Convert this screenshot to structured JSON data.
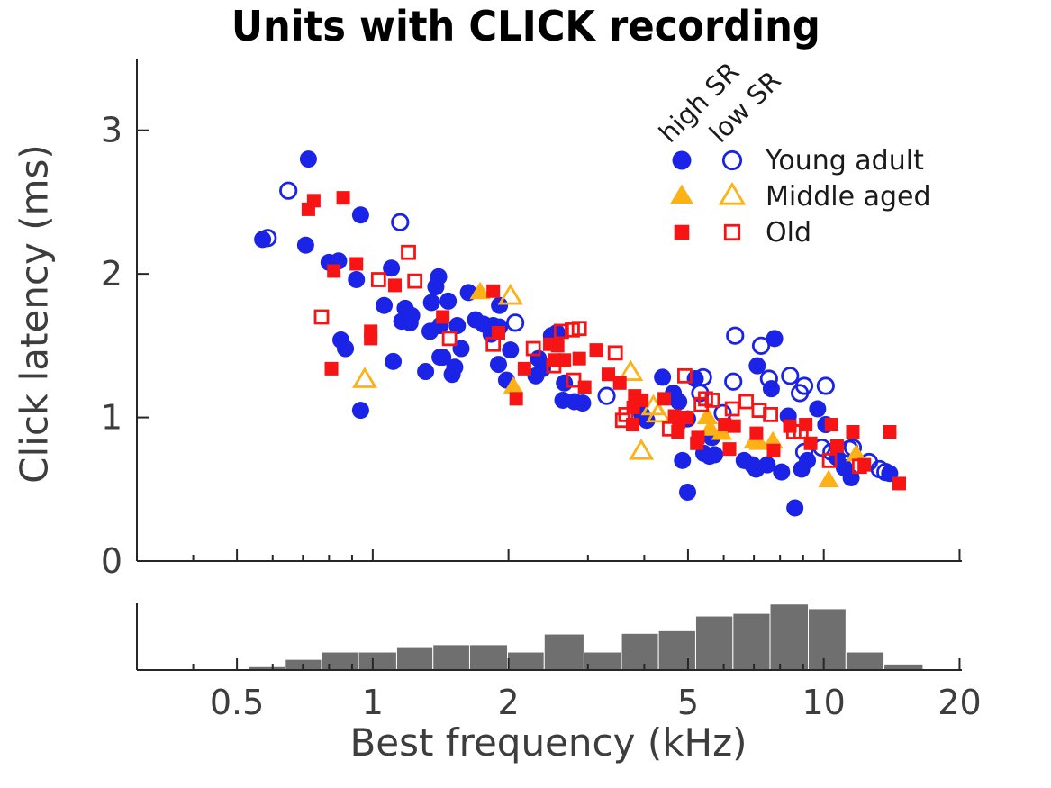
{
  "title": "Units with CLICK recording",
  "axes": {
    "x": {
      "label": "Best frequency (kHz)",
      "scale": "log",
      "min": 0.3,
      "max": 20.05,
      "major_ticks": [
        0.5,
        1,
        2,
        5,
        10,
        20
      ],
      "major_tick_labels": [
        "0.5",
        "1",
        "2",
        "5",
        "10",
        "20"
      ],
      "minor_ticks": [
        0.4,
        0.6,
        0.7,
        0.8,
        0.9,
        3,
        4,
        6,
        7,
        8,
        9
      ]
    },
    "y": {
      "label": "Click latency (ms)",
      "min": 0,
      "max": 3.5,
      "major_ticks": [
        0,
        1,
        2,
        3
      ],
      "major_tick_labels": [
        "0",
        "1",
        "2",
        "3"
      ]
    }
  },
  "legend": {
    "column_headers": [
      "high SR",
      "low SR"
    ],
    "entries": [
      {
        "label": "Young adult",
        "marker": "circle",
        "color_key": "blue"
      },
      {
        "label": "Middle aged",
        "marker": "triangle",
        "color_key": "orange"
      },
      {
        "label": "Old",
        "marker": "square",
        "color_key": "red"
      }
    ]
  },
  "colors": {
    "blue": "#1a23e6",
    "orange": "#fcb216",
    "red": "#f61414",
    "histogram": "#6f6f6f",
    "axis": "#262626",
    "tick_label": "#3d3d3d",
    "title": "#000000"
  },
  "chart_data": {
    "type": "scatter",
    "title": "Units with CLICK recording",
    "xlabel": "Best frequency (kHz)",
    "ylabel": "Click latency (ms)",
    "xscale": "log",
    "xlim": [
      0.3,
      20.05
    ],
    "ylim": [
      0,
      3.5
    ],
    "grid": false,
    "legend_position": "upper right",
    "series": [
      {
        "name": "Young adult high SR",
        "group": "Young adult",
        "sr": "high SR",
        "marker": "circle",
        "filled": true,
        "color_key": "blue",
        "points": [
          [
            0.72,
            2.8
          ],
          [
            0.94,
            2.41
          ],
          [
            0.57,
            2.24
          ],
          [
            0.71,
            2.2
          ],
          [
            0.8,
            2.08
          ],
          [
            0.84,
            2.09
          ],
          [
            0.92,
            1.96
          ],
          [
            1.1,
            2.04
          ],
          [
            1.4,
            1.98
          ],
          [
            1.38,
            1.91
          ],
          [
            1.47,
            1.81
          ],
          [
            1.35,
            1.8
          ],
          [
            1.06,
            1.78
          ],
          [
            1.18,
            1.76
          ],
          [
            1.22,
            1.71
          ],
          [
            1.16,
            1.67
          ],
          [
            1.21,
            1.66
          ],
          [
            1.34,
            1.6
          ],
          [
            0.85,
            1.54
          ],
          [
            0.87,
            1.48
          ],
          [
            1.11,
            1.39
          ],
          [
            0.94,
            1.05
          ],
          [
            1.31,
            1.32
          ],
          [
            1.43,
            1.42
          ],
          [
            1.5,
            1.3
          ],
          [
            1.52,
            1.35
          ],
          [
            1.41,
            1.64
          ],
          [
            1.41,
            1.42
          ],
          [
            1.63,
            1.87
          ],
          [
            1.91,
            1.78
          ],
          [
            1.54,
            1.64
          ],
          [
            1.69,
            1.68
          ],
          [
            1.76,
            1.65
          ],
          [
            1.83,
            1.58
          ],
          [
            1.85,
            1.64
          ],
          [
            1.91,
            1.63
          ],
          [
            1.57,
            1.48
          ],
          [
            2.02,
            1.47
          ],
          [
            1.9,
            1.37
          ],
          [
            1.98,
            1.26
          ],
          [
            2.33,
            1.41
          ],
          [
            2.38,
            1.34
          ],
          [
            2.3,
            1.29
          ],
          [
            2.49,
            1.57
          ],
          [
            2.56,
            1.59
          ],
          [
            2.66,
            1.24
          ],
          [
            2.64,
            1.12
          ],
          [
            2.8,
            1.11
          ],
          [
            2.92,
            1.1
          ],
          [
            3.95,
            1.02
          ],
          [
            4.05,
            0.98
          ],
          [
            4.39,
            1.28
          ],
          [
            5.19,
            1.27
          ],
          [
            4.64,
            1.17
          ],
          [
            4.77,
            1.11
          ],
          [
            4.99,
            0.99
          ],
          [
            4.86,
            0.7
          ],
          [
            5.42,
            0.75
          ],
          [
            5.58,
            0.73
          ],
          [
            4.99,
            0.48
          ],
          [
            5.65,
            0.86
          ],
          [
            5.73,
            0.74
          ],
          [
            6.66,
            0.7
          ],
          [
            6.95,
            0.67
          ],
          [
            7.08,
            0.64
          ],
          [
            7.49,
            0.67
          ],
          [
            8.06,
            0.62
          ],
          [
            8.93,
            0.64
          ],
          [
            9.2,
            0.7
          ],
          [
            7.78,
            1.55
          ],
          [
            7.12,
            1.36
          ],
          [
            7.65,
            1.2
          ],
          [
            8.34,
            1.01
          ],
          [
            9.69,
            1.06
          ],
          [
            10.1,
            0.95
          ],
          [
            10.7,
            0.72
          ],
          [
            11.1,
            0.65
          ],
          [
            11.5,
            0.58
          ],
          [
            14.0,
            0.61
          ],
          [
            8.63,
            0.37
          ]
        ]
      },
      {
        "name": "Young adult low SR",
        "group": "Young adult",
        "sr": "low SR",
        "marker": "circle",
        "filled": false,
        "color_key": "blue",
        "points": [
          [
            0.65,
            2.58
          ],
          [
            0.585,
            2.25
          ],
          [
            1.15,
            2.36
          ],
          [
            2.07,
            1.66
          ],
          [
            3.3,
            1.15
          ],
          [
            5.32,
            1.17
          ],
          [
            5.4,
            1.28
          ],
          [
            5.97,
            1.03
          ],
          [
            6.36,
            1.57
          ],
          [
            7.26,
            1.5
          ],
          [
            6.3,
            1.25
          ],
          [
            7.56,
            1.27
          ],
          [
            8.42,
            1.29
          ],
          [
            8.85,
            1.17
          ],
          [
            9.05,
            1.22
          ],
          [
            10.1,
            1.22
          ],
          [
            9.05,
            0.76
          ],
          [
            9.9,
            0.79
          ],
          [
            10.4,
            0.76
          ],
          [
            11.4,
            0.78
          ],
          [
            11.6,
            0.79
          ],
          [
            12.6,
            0.69
          ],
          [
            13.3,
            0.64
          ],
          [
            13.7,
            0.62
          ]
        ]
      },
      {
        "name": "Middle aged high SR",
        "group": "Middle aged",
        "sr": "high SR",
        "marker": "triangle",
        "filled": true,
        "color_key": "orange",
        "points": [
          [
            1.73,
            1.87
          ],
          [
            2.05,
            1.21
          ],
          [
            5.52,
            1.0
          ],
          [
            5.6,
            0.92
          ],
          [
            5.94,
            0.89
          ],
          [
            7.0,
            0.83
          ],
          [
            7.19,
            0.82
          ],
          [
            7.71,
            0.83
          ],
          [
            10.25,
            0.56
          ],
          [
            11.8,
            0.74
          ]
        ]
      },
      {
        "name": "Middle aged low SR",
        "group": "Middle aged",
        "sr": "low SR",
        "marker": "triangle",
        "filled": false,
        "color_key": "orange",
        "points": [
          [
            0.96,
            1.26
          ],
          [
            2.02,
            1.84
          ],
          [
            3.73,
            1.31
          ],
          [
            4.19,
            1.07
          ],
          [
            4.3,
            1.02
          ],
          [
            3.94,
            0.76
          ]
        ]
      },
      {
        "name": "Old high SR",
        "group": "Old",
        "sr": "high SR",
        "marker": "square",
        "filled": true,
        "color_key": "red",
        "points": [
          [
            0.74,
            2.51
          ],
          [
            0.72,
            2.45
          ],
          [
            0.86,
            2.53
          ],
          [
            0.82,
            2.02
          ],
          [
            0.92,
            2.07
          ],
          [
            1.12,
            1.92
          ],
          [
            1.43,
            1.7
          ],
          [
            0.99,
            1.6
          ],
          [
            0.99,
            1.55
          ],
          [
            0.81,
            1.34
          ],
          [
            1.85,
            1.88
          ],
          [
            1.9,
            1.59
          ],
          [
            2.17,
            1.34
          ],
          [
            2.08,
            1.13
          ],
          [
            2.47,
            1.51
          ],
          [
            2.57,
            1.5
          ],
          [
            2.53,
            1.4
          ],
          [
            2.66,
            1.4
          ],
          [
            2.87,
            1.41
          ],
          [
            2.95,
            1.21
          ],
          [
            3.13,
            1.47
          ],
          [
            3.33,
            1.3
          ],
          [
            3.53,
            1.24
          ],
          [
            3.81,
            1.15
          ],
          [
            3.95,
            1.12
          ],
          [
            3.78,
            1.07
          ],
          [
            4.43,
            1.13
          ],
          [
            3.77,
            0.95
          ],
          [
            4.67,
            1.01
          ],
          [
            4.97,
            1.0
          ],
          [
            4.77,
            0.97
          ],
          [
            4.75,
            0.9
          ],
          [
            5.26,
            0.86
          ],
          [
            5.23,
            0.82
          ],
          [
            6.03,
            0.95
          ],
          [
            6.33,
            0.94
          ],
          [
            6.18,
            0.78
          ],
          [
            7.09,
            0.89
          ],
          [
            7.74,
            0.77
          ],
          [
            8.41,
            0.94
          ],
          [
            9.12,
            0.95
          ],
          [
            9.35,
            0.82
          ],
          [
            10.4,
            0.95
          ],
          [
            10.7,
            0.8
          ],
          [
            11.6,
            0.9
          ],
          [
            12.3,
            0.67
          ],
          [
            14.0,
            0.9
          ],
          [
            14.7,
            0.54
          ]
        ]
      },
      {
        "name": "Old low SR",
        "group": "Old",
        "sr": "low SR",
        "marker": "square",
        "filled": false,
        "color_key": "red",
        "points": [
          [
            1.2,
            2.15
          ],
          [
            1.03,
            1.96
          ],
          [
            1.24,
            1.95
          ],
          [
            0.77,
            1.7
          ],
          [
            1.48,
            1.55
          ],
          [
            1.85,
            1.51
          ],
          [
            2.27,
            1.48
          ],
          [
            2.62,
            1.6
          ],
          [
            2.77,
            1.61
          ],
          [
            2.87,
            1.62
          ],
          [
            2.52,
            1.36
          ],
          [
            2.79,
            1.26
          ],
          [
            3.45,
            1.45
          ],
          [
            3.58,
            0.98
          ],
          [
            3.64,
            1.02
          ],
          [
            4.55,
            0.92
          ],
          [
            4.92,
            1.29
          ],
          [
            5.35,
            1.09
          ],
          [
            5.47,
            1.13
          ],
          [
            5.66,
            1.12
          ],
          [
            6.27,
            1.06
          ],
          [
            6.73,
            1.11
          ],
          [
            7.19,
            1.05
          ],
          [
            7.62,
            1.02
          ],
          [
            8.58,
            0.9
          ],
          [
            8.9,
            0.9
          ],
          [
            10.3,
            0.7
          ],
          [
            12.0,
            0.66
          ]
        ]
      }
    ],
    "histogram": {
      "description": "Distribution of best frequency (kHz), bottom panel",
      "bin_edges_khz": [
        0.53,
        0.64,
        0.77,
        0.93,
        1.13,
        1.36,
        1.64,
        1.99,
        2.4,
        2.94,
        3.56,
        4.3,
        5.2,
        6.29,
        7.6,
        9.24,
        11.2,
        13.6,
        16.6
      ],
      "heights_rel": [
        0.05,
        0.16,
        0.27,
        0.27,
        0.35,
        0.38,
        0.38,
        0.27,
        0.54,
        0.27,
        0.55,
        0.59,
        0.81,
        0.85,
        0.99,
        0.92,
        0.27,
        0.09
      ]
    }
  }
}
